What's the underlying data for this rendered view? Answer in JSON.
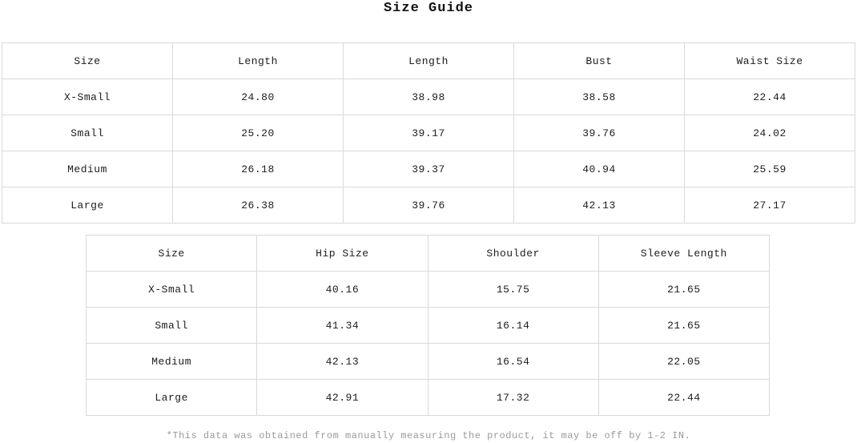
{
  "page": {
    "title": "Size Guide",
    "footnote": "*This data was obtained from manually measuring the product, it may be off by 1-2 IN."
  },
  "colors": {
    "background": "#ffffff",
    "border": "#d9d9d9",
    "text": "#1c1c1c",
    "footnote_text": "#9a9a9a"
  },
  "size_table_upper": {
    "headers": [
      "Size",
      "Length",
      "Length",
      "Bust",
      "Waist Size"
    ],
    "rows": [
      [
        "X-Small",
        "24.80",
        "38.98",
        "38.58",
        "22.44"
      ],
      [
        "Small",
        "25.20",
        "39.17",
        "39.76",
        "24.02"
      ],
      [
        "Medium",
        "26.18",
        "39.37",
        "40.94",
        "25.59"
      ],
      [
        "Large",
        "26.38",
        "39.76",
        "42.13",
        "27.17"
      ]
    ]
  },
  "size_table_lower": {
    "headers": [
      "Size",
      "Hip Size",
      "Shoulder",
      "Sleeve Length"
    ],
    "rows": [
      [
        "X-Small",
        "40.16",
        "15.75",
        "21.65"
      ],
      [
        "Small",
        "41.34",
        "16.14",
        "21.65"
      ],
      [
        "Medium",
        "42.13",
        "16.54",
        "22.05"
      ],
      [
        "Large",
        "42.91",
        "17.32",
        "22.44"
      ]
    ]
  },
  "chart_data": {
    "type": "table",
    "title": "Size Guide",
    "tables": [
      {
        "columns": [
          "Size",
          "Length",
          "Length",
          "Bust",
          "Waist Size"
        ],
        "rows": [
          [
            "X-Small",
            24.8,
            38.98,
            38.58,
            22.44
          ],
          [
            "Small",
            25.2,
            39.17,
            39.76,
            24.02
          ],
          [
            "Medium",
            26.18,
            39.37,
            40.94,
            25.59
          ],
          [
            "Large",
            26.38,
            39.76,
            42.13,
            27.17
          ]
        ]
      },
      {
        "columns": [
          "Size",
          "Hip Size",
          "Shoulder",
          "Sleeve Length"
        ],
        "rows": [
          [
            "X-Small",
            40.16,
            15.75,
            21.65
          ],
          [
            "Small",
            41.34,
            16.14,
            21.65
          ],
          [
            "Medium",
            42.13,
            16.54,
            22.05
          ],
          [
            "Large",
            42.91,
            17.32,
            22.44
          ]
        ]
      }
    ],
    "units": "inches",
    "note": "*This data was obtained from manually measuring the product, it may be off by 1-2 IN."
  }
}
